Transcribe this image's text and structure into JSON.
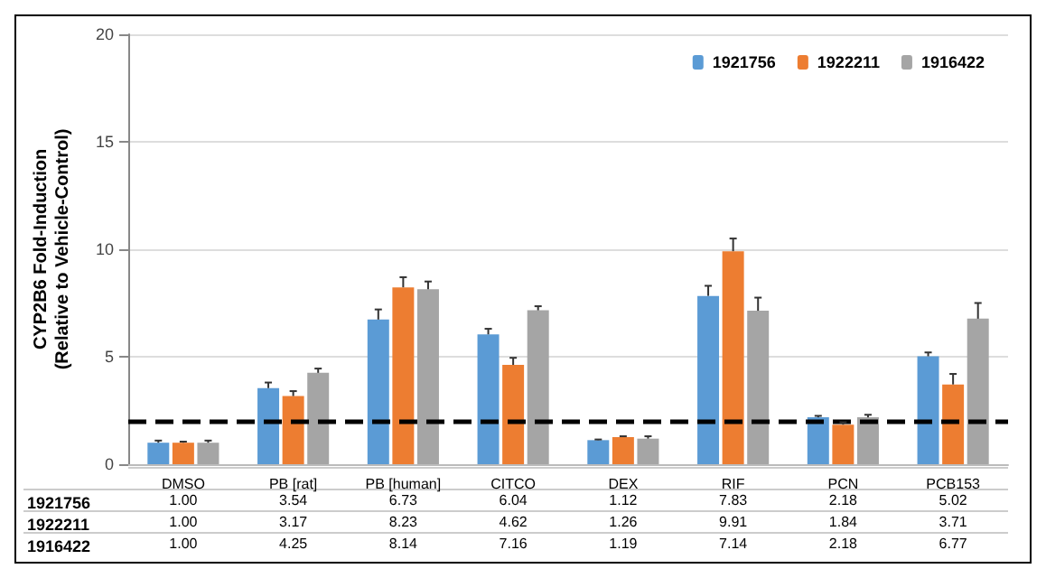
{
  "chart_data": {
    "type": "bar",
    "ylabel": "CYP2B6 Fold-Induction\n(Relative to Vehicle-Control)",
    "categories": [
      "DMSO",
      "PB [rat]",
      "PB [human]",
      "CITCO",
      "DEX",
      "RIF",
      "PCN",
      "PCB153"
    ],
    "series": [
      {
        "name": "1921756",
        "color": "#5b9bd5",
        "values": [
          1.0,
          3.54,
          6.73,
          6.04,
          1.12,
          7.83,
          2.18,
          5.02
        ],
        "value_labels": [
          "1.00",
          "3.54",
          "6.73",
          "6.04",
          "1.12",
          "7.83",
          "2.18",
          "5.02"
        ],
        "errors": [
          [
            1.0,
            1.1
          ],
          [
            3.54,
            3.8
          ],
          [
            6.73,
            7.2
          ],
          [
            6.04,
            6.3
          ],
          [
            1.12,
            1.15
          ],
          [
            7.83,
            8.3
          ],
          [
            2.18,
            2.25
          ],
          [
            5.02,
            5.2
          ]
        ]
      },
      {
        "name": "1922211",
        "color": "#ed7d31",
        "values": [
          1.0,
          3.17,
          8.23,
          4.62,
          1.26,
          9.91,
          1.84,
          3.71
        ],
        "value_labels": [
          "1.00",
          "3.17",
          "8.23",
          "4.62",
          "1.26",
          "9.91",
          "1.84",
          "3.71"
        ],
        "errors": [
          [
            1.0,
            1.05
          ],
          [
            3.17,
            3.4
          ],
          [
            8.23,
            8.7
          ],
          [
            4.62,
            4.95
          ],
          [
            1.26,
            1.3
          ],
          [
            9.91,
            10.5
          ],
          [
            1.84,
            1.95
          ],
          [
            3.71,
            4.2
          ]
        ]
      },
      {
        "name": "1916422",
        "color": "#a5a5a5",
        "values": [
          1.0,
          4.25,
          8.14,
          7.16,
          1.19,
          7.14,
          2.18,
          6.77
        ],
        "value_labels": [
          "1.00",
          "4.25",
          "8.14",
          "7.16",
          "1.19",
          "7.14",
          "2.18",
          "6.77"
        ],
        "errors": [
          [
            1.0,
            1.1
          ],
          [
            4.25,
            4.45
          ],
          [
            8.14,
            8.5
          ],
          [
            7.16,
            7.35
          ],
          [
            1.19,
            1.3
          ],
          [
            7.14,
            7.75
          ],
          [
            2.18,
            2.3
          ],
          [
            6.77,
            7.5
          ]
        ]
      }
    ],
    "ylim": [
      0,
      20
    ],
    "yticks": [
      0,
      5,
      10,
      15,
      20
    ],
    "grid": "y",
    "legend": "top right",
    "ref_lines": [
      {
        "axis": "y",
        "value": 2,
        "color": "#000000",
        "line_style": "dashed"
      }
    ]
  }
}
